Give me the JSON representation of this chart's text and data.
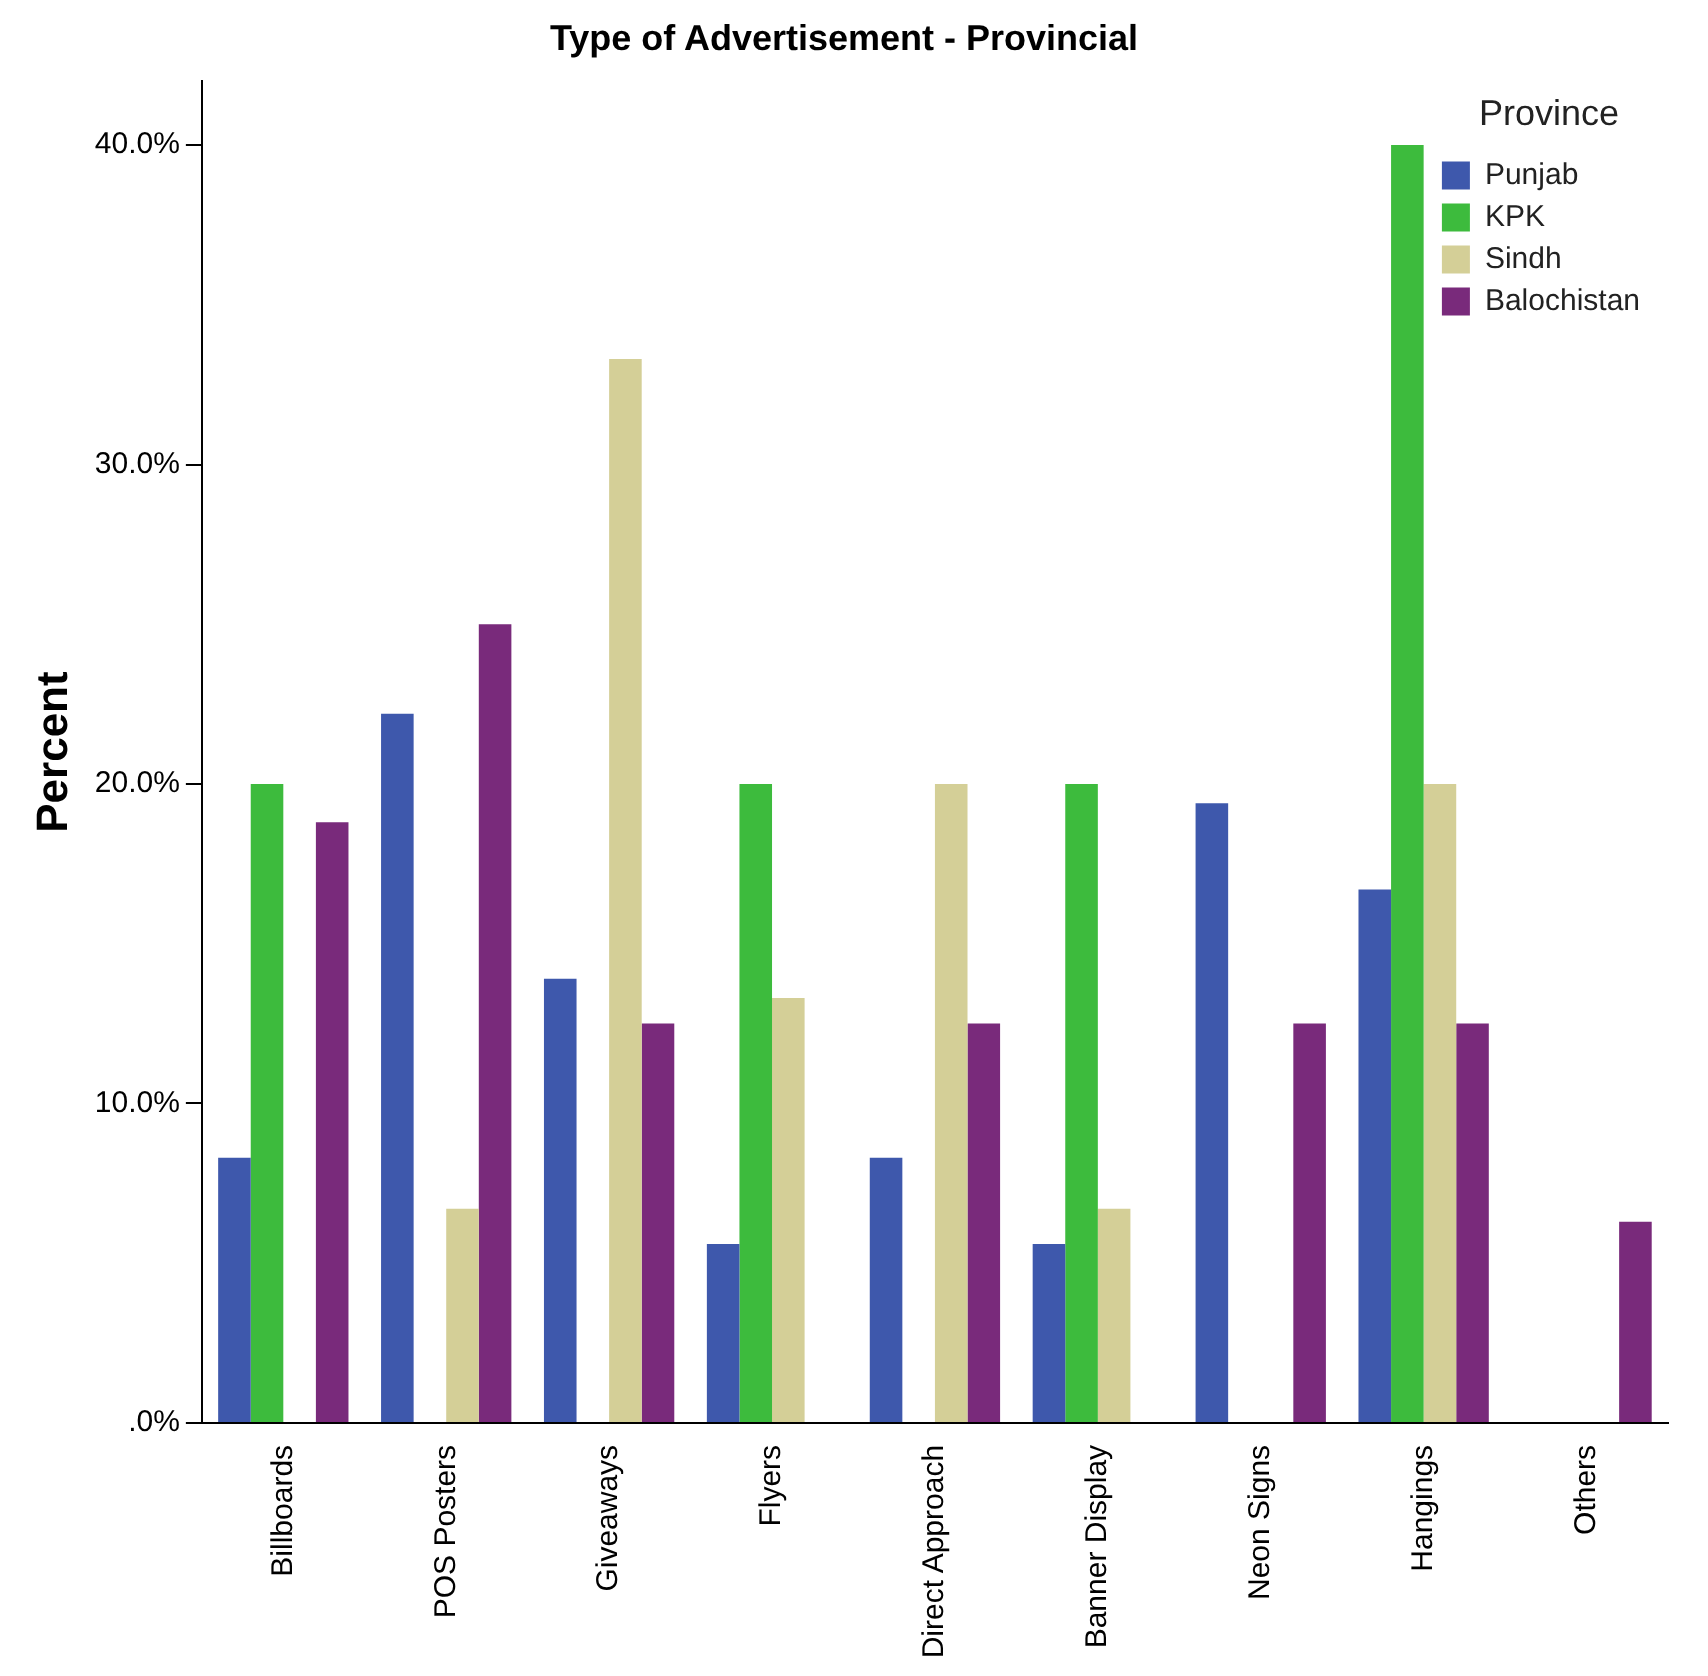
{
  "chart_data": {
    "type": "bar",
    "title": "Type of Advertisement - Provincial",
    "ylabel": "Percent",
    "legend_title": "Province",
    "categories": [
      "Billboards",
      "POS Posters",
      "Giveaways",
      "Flyers",
      "Direct Approach",
      "Banner Display",
      "Neon Signs",
      "Hangings",
      "Others"
    ],
    "series": [
      {
        "name": "Punjab",
        "color": "#3e58ac",
        "values": [
          8.3,
          22.2,
          13.9,
          5.6,
          8.3,
          5.6,
          19.4,
          16.7,
          0
        ]
      },
      {
        "name": "KPK",
        "color": "#3dbb3d",
        "values": [
          20,
          0,
          0,
          20,
          0,
          20,
          0,
          40,
          0
        ]
      },
      {
        "name": "Sindh",
        "color": "#d4cf97",
        "values": [
          0,
          6.7,
          33.3,
          13.3,
          20,
          6.7,
          0,
          20,
          0
        ]
      },
      {
        "name": "Balochistan",
        "color": "#792a7b",
        "values": [
          18.8,
          25,
          12.5,
          0,
          12.5,
          0,
          12.5,
          12.5,
          6.3
        ]
      }
    ],
    "ylim": [
      0,
      42
    ],
    "yticks": [
      {
        "value": 0,
        "label": ".0%"
      },
      {
        "value": 10,
        "label": "10.0%"
      },
      {
        "value": 20,
        "label": "20.0%"
      },
      {
        "value": 30,
        "label": "30.0%"
      },
      {
        "value": 40,
        "label": "40.0%"
      }
    ],
    "grid": false,
    "legend": "top right"
  }
}
